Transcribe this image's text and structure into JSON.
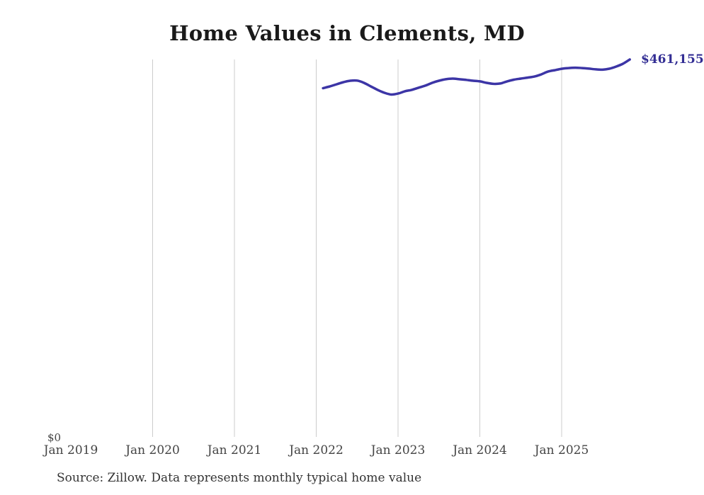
{
  "chart_data": {
    "type": "line",
    "title": "Home Values in Clements, MD",
    "y_zero_label": "$0",
    "end_label": "$461,155",
    "end_value": 461155,
    "line_color": "#3c35a6",
    "end_label_color": "#332e94",
    "grid_color": "#cccccc",
    "tick_label_color": "#444444",
    "grid": "vertical-only",
    "legend_position": "none",
    "ylim": [
      0,
      461155
    ],
    "x_ticks": [
      {
        "label": "Jan 2019",
        "year": 2019,
        "gridline": false
      },
      {
        "label": "Jan 2020",
        "year": 2020,
        "gridline": true
      },
      {
        "label": "Jan 2021",
        "year": 2021,
        "gridline": true
      },
      {
        "label": "Jan 2022",
        "year": 2022,
        "gridline": true
      },
      {
        "label": "Jan 2023",
        "year": 2023,
        "gridline": true
      },
      {
        "label": "Jan 2024",
        "year": 2024,
        "gridline": true
      },
      {
        "label": "Jan 2025",
        "year": 2025,
        "gridline": true
      }
    ],
    "series": [
      {
        "name": "Monthly typical home value",
        "months": [
          "2022-01",
          "2022-02",
          "2022-03",
          "2022-04",
          "2022-05",
          "2022-06",
          "2022-07",
          "2022-08",
          "2022-09",
          "2022-10",
          "2022-11",
          "2022-12",
          "2023-01",
          "2023-02",
          "2023-03",
          "2023-04",
          "2023-05",
          "2023-06",
          "2023-07",
          "2023-08",
          "2023-09",
          "2023-10",
          "2023-11",
          "2023-12",
          "2024-01",
          "2024-02",
          "2024-03",
          "2024-04",
          "2024-05",
          "2024-06",
          "2024-07",
          "2024-08",
          "2024-09",
          "2024-10",
          "2024-11",
          "2024-12",
          "2025-01",
          "2025-02",
          "2025-03",
          "2025-04",
          "2025-05",
          "2025-06",
          "2025-07",
          "2025-08",
          "2025-09",
          "2025-10"
        ],
        "values": [
          426100,
          428300,
          430900,
          433500,
          435200,
          435400,
          432600,
          428300,
          424000,
          420500,
          418300,
          419500,
          422300,
          424000,
          426600,
          429200,
          432600,
          435200,
          437000,
          437800,
          437000,
          436200,
          435200,
          434400,
          432600,
          431400,
          431800,
          434400,
          436500,
          437800,
          439000,
          440300,
          442900,
          446400,
          448100,
          449800,
          450700,
          451100,
          450700,
          450000,
          449100,
          448700,
          449900,
          452500,
          456000,
          461155
        ]
      }
    ]
  },
  "footer": {
    "source_note": "Source: Zillow. Data represents monthly typical home value"
  }
}
